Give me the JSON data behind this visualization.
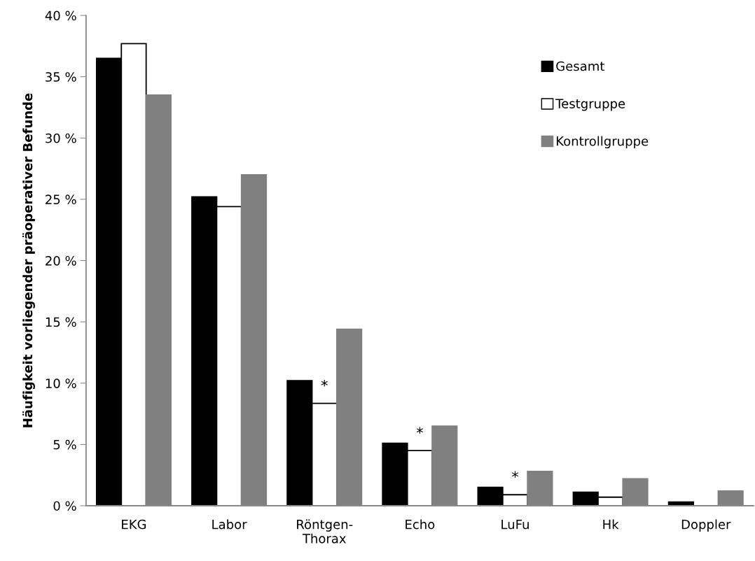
{
  "chart_data": {
    "type": "bar",
    "ylabel": "Häufigkeit vorliegender präoperativer Befunde",
    "categories": [
      "EKG",
      "Labor",
      "Röntgen-\nThorax",
      "Echo",
      "LuFu",
      "Hk",
      "Doppler"
    ],
    "series": [
      {
        "name": "Gesamt",
        "color": "#000000",
        "values": [
          36.5,
          25.2,
          10.2,
          5.1,
          1.5,
          1.1,
          0.3
        ]
      },
      {
        "name": "Testgruppe",
        "color": "#ffffff",
        "values": [
          37.7,
          24.4,
          8.35,
          4.5,
          0.9,
          0.7,
          0
        ]
      },
      {
        "name": "Kontrollgruppe",
        "color": "#808080",
        "values": [
          33.5,
          27.0,
          14.4,
          6.5,
          2.8,
          2.2,
          1.2
        ]
      }
    ],
    "annotations": [
      {
        "text": "*",
        "x": "Röntgen-\nThorax",
        "y": 8.35
      },
      {
        "text": "*",
        "x": "Echo",
        "y": 4.5
      },
      {
        "text": "*",
        "x": "LuFu",
        "y": 0.9
      }
    ],
    "ylim": [
      0,
      40
    ],
    "yticks": [
      {
        "value": 0,
        "label": "0 %"
      },
      {
        "value": 5,
        "label": "5 %"
      },
      {
        "value": 10,
        "label": "10 %"
      },
      {
        "value": 15,
        "label": "15 %"
      },
      {
        "value": 20,
        "label": "20 %"
      },
      {
        "value": 25,
        "label": "25 %"
      },
      {
        "value": 30,
        "label": "30 %"
      },
      {
        "value": 35,
        "label": "35 %"
      },
      {
        "value": 40,
        "label": "40 %"
      }
    ],
    "grid": false,
    "legend": "top right"
  }
}
